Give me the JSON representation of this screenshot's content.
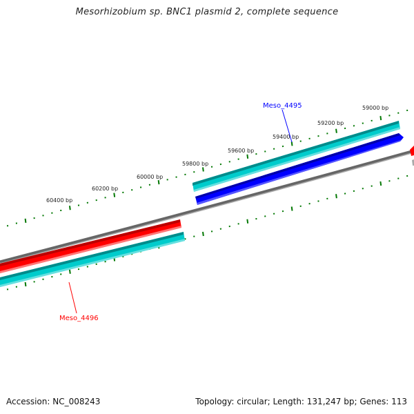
{
  "title": "Mesorhizobium sp. BNC1 plasmid 2, complete sequence",
  "accession": "Accession: NC_008243",
  "summary": "Topology: circular; Length: 131,247 bp; Genes: 113",
  "tick_labels": [
    "60400 bp",
    "60200 bp",
    "60000 bp",
    "59800 bp",
    "59600 bp",
    "59400 bp",
    "59200 bp",
    "59000 bp"
  ],
  "genes": [
    {
      "name": "Meso_4495",
      "color": "#0000ff",
      "strand": "forward"
    },
    {
      "name": "Meso_4496",
      "color": "#ff0000",
      "strand": "reverse"
    }
  ],
  "colors": {
    "cds_forward": "#0000ff",
    "cds_reverse": "#ff0000",
    "feature_track": "#00cccc",
    "backbone": "#808080",
    "ticks": "#007700"
  }
}
